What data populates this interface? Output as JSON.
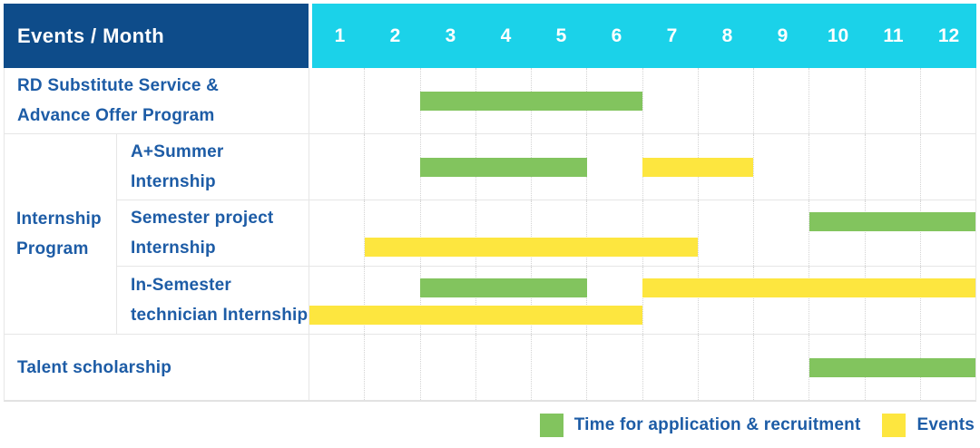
{
  "header": {
    "title": "Events / Month",
    "months": [
      "1",
      "2",
      "3",
      "4",
      "5",
      "6",
      "7",
      "8",
      "9",
      "10",
      "11",
      "12"
    ]
  },
  "table_rows": [
    {
      "kind": "simple",
      "label_lines": [
        "RD Substitute Service &",
        "Advance Offer Program"
      ],
      "bars": [
        {
          "color": "green",
          "start": 3,
          "end": 6,
          "lane": "center"
        }
      ]
    },
    {
      "kind": "group",
      "label_lines": [
        "Internship",
        "Program"
      ],
      "subrows": [
        {
          "label_lines": [
            "A+Summer",
            "Internship"
          ],
          "bars": [
            {
              "color": "green",
              "start": 3,
              "end": 5,
              "lane": "center"
            },
            {
              "color": "yellow",
              "start": 7,
              "end": 8,
              "lane": "center"
            }
          ]
        },
        {
          "label_lines": [
            "Semester project",
            "Internship"
          ],
          "bars": [
            {
              "color": "green",
              "start": 10,
              "end": 12,
              "lane": "top"
            },
            {
              "color": "yellow",
              "start": 2,
              "end": 7,
              "lane": "bottom"
            }
          ]
        },
        {
          "label_lines": [
            "In-Semester",
            "technician Internship"
          ],
          "bars": [
            {
              "color": "green",
              "start": 3,
              "end": 5,
              "lane": "top"
            },
            {
              "color": "yellow",
              "start": 7,
              "end": 12,
              "lane": "top"
            },
            {
              "color": "yellow",
              "start": 1,
              "end": 6,
              "lane": "bottom"
            }
          ]
        }
      ]
    },
    {
      "kind": "simple",
      "label_lines": [
        "Talent scholarship"
      ],
      "bars": [
        {
          "color": "green",
          "start": 10,
          "end": 12,
          "lane": "center"
        }
      ]
    }
  ],
  "legend": {
    "items": [
      {
        "label": "Time for application & recruitment",
        "swatch": "green"
      },
      {
        "label": "Events",
        "swatch": "yellow"
      }
    ]
  },
  "colors": {
    "header_bg": "#0e4c8a",
    "month_header_bg": "#1bd2e9",
    "bar_green": "#82c45e",
    "bar_yellow": "#fde63f",
    "label_text": "#1d5ca6"
  },
  "chart_data": {
    "type": "bar",
    "subtype": "gantt",
    "title": "Events / Month",
    "x_axis": {
      "label": "Month",
      "ticks": [
        1,
        2,
        3,
        4,
        5,
        6,
        7,
        8,
        9,
        10,
        11,
        12
      ],
      "range": [
        1,
        12
      ],
      "grid": true
    },
    "legend_position": "bottom-right",
    "series_legend": [
      {
        "name": "Time for application & recruitment",
        "color": "#82c45e"
      },
      {
        "name": "Events",
        "color": "#fde63f"
      }
    ],
    "rows": [
      {
        "group": null,
        "label": "RD Substitute Service & Advance Offer Program",
        "bars": [
          {
            "series": "Time for application & recruitment",
            "start_month": 3,
            "end_month": 6
          }
        ]
      },
      {
        "group": "Internship Program",
        "label": "A+Summer Internship",
        "bars": [
          {
            "series": "Time for application & recruitment",
            "start_month": 3,
            "end_month": 5
          },
          {
            "series": "Events",
            "start_month": 7,
            "end_month": 8
          }
        ]
      },
      {
        "group": "Internship Program",
        "label": "Semester project Internship",
        "bars": [
          {
            "series": "Time for application & recruitment",
            "start_month": 10,
            "end_month": 12
          },
          {
            "series": "Events",
            "start_month": 2,
            "end_month": 7
          }
        ]
      },
      {
        "group": "Internship Program",
        "label": "In-Semester technician Internship",
        "bars": [
          {
            "series": "Time for application & recruitment",
            "start_month": 3,
            "end_month": 5
          },
          {
            "series": "Events",
            "start_month": 7,
            "end_month": 12
          },
          {
            "series": "Events",
            "start_month": 1,
            "end_month": 6
          }
        ]
      },
      {
        "group": null,
        "label": "Talent scholarship",
        "bars": [
          {
            "series": "Time for application & recruitment",
            "start_month": 10,
            "end_month": 12
          }
        ]
      }
    ]
  }
}
